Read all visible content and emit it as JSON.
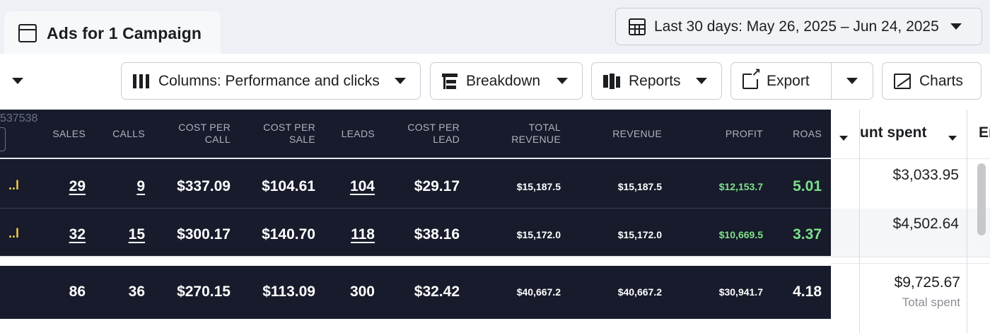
{
  "tab": {
    "title": "Ads for 1 Campaign",
    "icon": "window-icon"
  },
  "date_range": {
    "label": "Last 30 days: May 26, 2025 – Jun 24, 2025",
    "icon": "calendar-icon"
  },
  "toolbar": {
    "columns_label": "Columns: Performance and clicks",
    "breakdown_label": "Breakdown",
    "reports_label": "Reports",
    "export_label": "Export",
    "charts_label": "Charts"
  },
  "table": {
    "id_fragment": "537538",
    "headers": {
      "sales": "SALES",
      "calls": "CALLS",
      "cost_per_call": [
        "COST PER",
        "CALL"
      ],
      "cost_per_sale": [
        "COST PER",
        "SALE"
      ],
      "leads": "LEADS",
      "cost_per_lead": [
        "COST PER",
        "LEAD"
      ],
      "total_revenue": [
        "TOTAL",
        "REVENUE"
      ],
      "revenue": "REVENUE",
      "profit": "PROFIT",
      "roas": "ROAS"
    },
    "rows": [
      {
        "indicator": "..l",
        "sales": "29",
        "calls": "9",
        "cost_per_call": "$337.09",
        "cost_per_sale": "$104.61",
        "leads": "104",
        "cost_per_lead": "$29.17",
        "total_revenue": "$15,187.5",
        "revenue": "$15,187.5",
        "profit": "$12,153.7",
        "roas": "5.01",
        "amount_spent": "$3,033.95"
      },
      {
        "indicator": "..l",
        "sales": "32",
        "calls": "15",
        "cost_per_call": "$300.17",
        "cost_per_sale": "$140.70",
        "leads": "118",
        "cost_per_lead": "$38.16",
        "total_revenue": "$15,172.0",
        "revenue": "$15,172.0",
        "profit": "$10,669.5",
        "roas": "3.37",
        "amount_spent": "$4,502.64"
      }
    ],
    "totals": {
      "sales": "86",
      "calls": "36",
      "cost_per_call": "$270.15",
      "cost_per_sale": "$113.09",
      "leads": "300",
      "cost_per_lead": "$32.42",
      "total_revenue": "$40,667.2",
      "revenue": "$40,667.2",
      "profit": "$30,941.7",
      "roas": "4.18",
      "amount_spent": "$9,725.67",
      "amount_spent_caption": "Total spent"
    },
    "right_headers": {
      "amount_spent": "unt spent",
      "next_col": "En"
    }
  },
  "colors": {
    "dark_bg": "#171b2b",
    "profit_green": "#7ee08a",
    "indicator_yellow": "#f2c94c"
  }
}
